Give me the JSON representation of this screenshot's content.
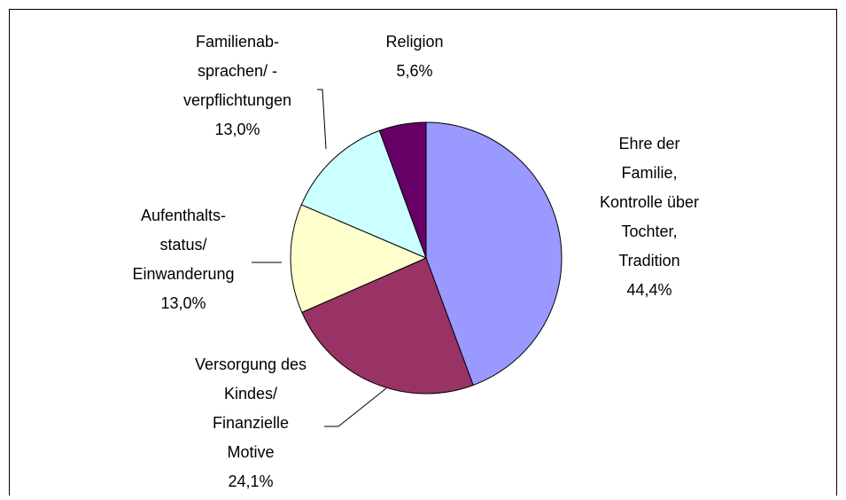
{
  "chart_data": {
    "type": "pie",
    "categories": [
      "Ehre der\nFamilie,\nKontrolle über\nTochter,\nTradition",
      "Versorgung des\nKindes/\nFinanzielle\nMotive",
      "Aufenthalts-\nstatus/\nEinwanderung",
      "Familienab-\nsprachen/ -\nverpflichtungen",
      "Religion"
    ],
    "values": [
      44.4,
      24.1,
      13.0,
      13.0,
      5.6
    ],
    "value_labels": [
      "44,4%",
      "24,1%",
      "13,0%",
      "13,0%",
      "5,6%"
    ],
    "colors": [
      "#9999ff",
      "#993366",
      "#ffffcc",
      "#ccffff",
      "#660066"
    ]
  }
}
